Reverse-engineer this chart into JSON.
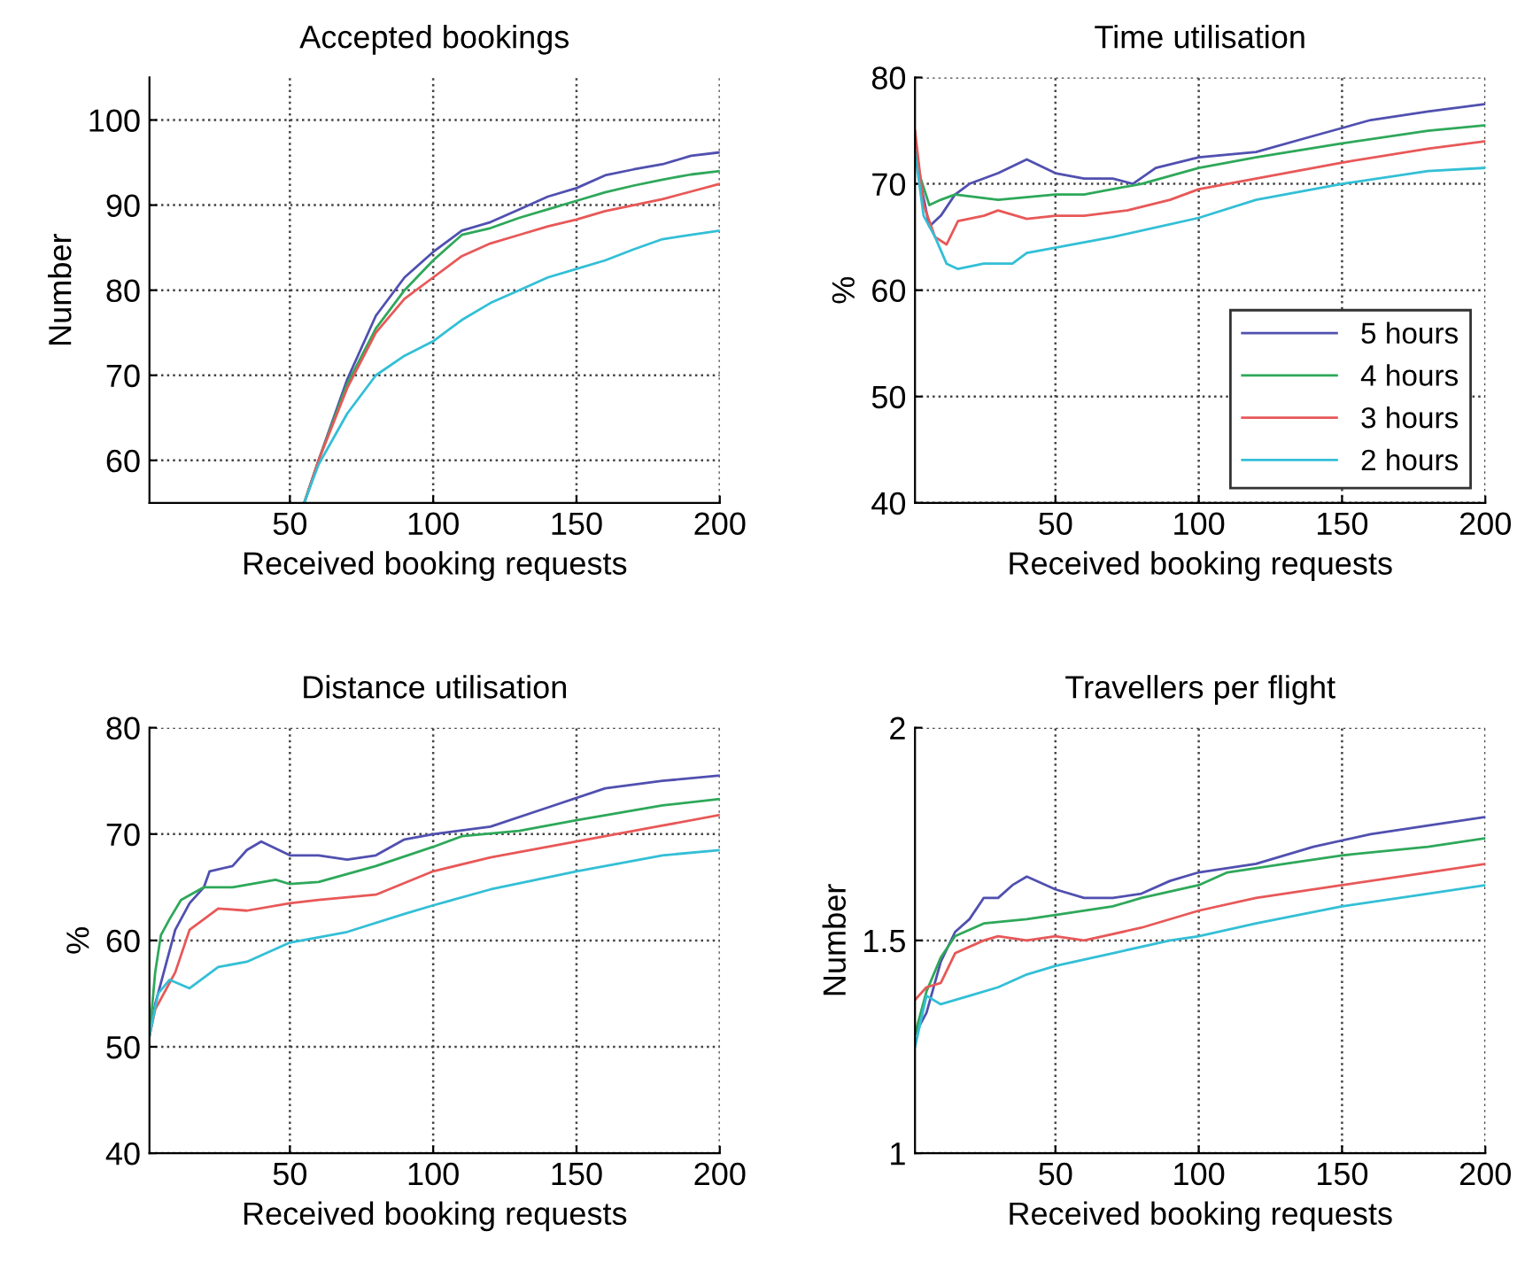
{
  "chart_data": [
    {
      "type": "line",
      "title": "Accepted bookings",
      "xlabel": "Received booking requests",
      "ylabel": "Number",
      "xlim": [
        1,
        200
      ],
      "xticks": [
        50,
        100,
        150,
        200
      ],
      "ylim": [
        55,
        105
      ],
      "yticks": [
        60,
        70,
        80,
        90,
        100
      ],
      "grid": true,
      "line_style": "solid",
      "series": [
        {
          "color": "#5050b0",
          "x": [
            55,
            60,
            70,
            80,
            90,
            100,
            110,
            120,
            130,
            140,
            150,
            160,
            170,
            180,
            190,
            200
          ],
          "values": [
            55,
            60,
            69.5,
            77,
            81.5,
            84.5,
            87,
            88,
            89.5,
            91,
            92,
            93.5,
            94.2,
            94.8,
            95.8,
            96.2
          ]
        },
        {
          "color": "#2ea85a",
          "x": [
            55,
            60,
            70,
            80,
            90,
            100,
            110,
            120,
            130,
            140,
            150,
            160,
            170,
            180,
            190,
            200
          ],
          "values": [
            55,
            60,
            69,
            75.5,
            80,
            83.5,
            86.5,
            87.3,
            88.5,
            89.5,
            90.5,
            91.5,
            92.3,
            93,
            93.6,
            94
          ]
        },
        {
          "color": "#e85858",
          "x": [
            55,
            60,
            70,
            80,
            90,
            100,
            110,
            120,
            130,
            140,
            150,
            160,
            170,
            180,
            190,
            200
          ],
          "values": [
            55,
            60,
            68.5,
            75,
            79,
            81.5,
            84,
            85.5,
            86.5,
            87.5,
            88.3,
            89.3,
            90,
            90.7,
            91.6,
            92.5
          ]
        },
        {
          "color": "#33bfd6",
          "x": [
            55,
            60,
            70,
            80,
            90,
            100,
            110,
            120,
            130,
            140,
            150,
            160,
            170,
            180,
            190,
            200
          ],
          "values": [
            55,
            59.5,
            65.5,
            70,
            72.3,
            74,
            76.5,
            78.5,
            80,
            81.5,
            82.5,
            83.5,
            84.8,
            86,
            86.5,
            87
          ]
        }
      ]
    },
    {
      "type": "line",
      "title": "Time utilisation",
      "xlabel": "Received booking requests",
      "ylabel": "%",
      "xlim": [
        1,
        200
      ],
      "xticks": [
        50,
        100,
        150,
        200
      ],
      "ylim": [
        40,
        80
      ],
      "yticks": [
        40,
        50,
        60,
        70,
        80
      ],
      "grid": true,
      "line_style": "solid",
      "legend": "bottom right",
      "series": [
        {
          "name": "5 hours",
          "color": "#5050b0",
          "x": [
            1,
            3,
            6,
            10,
            15,
            20,
            25,
            30,
            40,
            50,
            60,
            70,
            77,
            85,
            100,
            120,
            140,
            160,
            180,
            200
          ],
          "values": [
            73,
            70,
            66,
            67,
            69,
            70,
            70.5,
            71,
            72.3,
            71,
            70.5,
            70.5,
            70,
            71.5,
            72.5,
            73,
            74.5,
            76,
            76.8,
            77.5
          ]
        },
        {
          "name": "4 hours",
          "color": "#2ea85a",
          "x": [
            1,
            3,
            6,
            10,
            15,
            30,
            50,
            60,
            80,
            100,
            120,
            150,
            180,
            200
          ],
          "values": [
            73,
            70.5,
            68,
            68.5,
            69,
            68.5,
            69,
            69,
            70,
            71.5,
            72.5,
            73.8,
            75,
            75.5
          ]
        },
        {
          "name": "3 hours",
          "color": "#e85858",
          "x": [
            1,
            4,
            8,
            12,
            16,
            25,
            30,
            40,
            50,
            60,
            75,
            90,
            100,
            120,
            150,
            180,
            200
          ],
          "values": [
            75,
            68,
            65,
            64.3,
            66.5,
            67,
            67.5,
            66.7,
            67,
            67,
            67.5,
            68.5,
            69.5,
            70.5,
            72,
            73.3,
            74
          ]
        },
        {
          "name": "2 hours",
          "color": "#33bfd6",
          "x": [
            1,
            4,
            8,
            12,
            16,
            25,
            35,
            40,
            50,
            70,
            100,
            120,
            150,
            180,
            200
          ],
          "values": [
            73,
            67,
            65,
            62.5,
            62,
            62.5,
            62.5,
            63.5,
            64,
            65,
            66.8,
            68.5,
            70,
            71.2,
            71.5
          ]
        }
      ]
    },
    {
      "type": "line",
      "title": "Distance utilisation",
      "xlabel": "Received booking requests",
      "ylabel": "%",
      "xlim": [
        1,
        200
      ],
      "xticks": [
        50,
        100,
        150,
        200
      ],
      "ylim": [
        40,
        80
      ],
      "yticks": [
        40,
        50,
        60,
        70,
        80
      ],
      "grid": true,
      "line_style": "solid",
      "series": [
        {
          "color": "#5050b0",
          "x": [
            1,
            3,
            6,
            10,
            15,
            20,
            22,
            30,
            35,
            40,
            50,
            60,
            70,
            80,
            90,
            100,
            120,
            140,
            160,
            180,
            200
          ],
          "values": [
            51,
            54,
            57,
            61,
            63.5,
            65,
            66.5,
            67,
            68.5,
            69.3,
            68,
            68,
            67.6,
            68,
            69.5,
            70,
            70.7,
            72.5,
            74.3,
            75,
            75.5
          ]
        },
        {
          "color": "#2ea85a",
          "x": [
            1,
            3,
            5,
            8,
            12,
            20,
            30,
            45,
            50,
            60,
            80,
            100,
            110,
            130,
            150,
            180,
            200
          ],
          "values": [
            51,
            57,
            60.5,
            62,
            63.8,
            65,
            65,
            65.7,
            65.3,
            65.5,
            67,
            68.8,
            69.8,
            70.3,
            71.3,
            72.7,
            73.3
          ]
        },
        {
          "color": "#e85858",
          "x": [
            1,
            3,
            6,
            10,
            15,
            25,
            35,
            50,
            60,
            80,
            100,
            120,
            150,
            180,
            200
          ],
          "values": [
            51,
            53.5,
            55,
            57,
            61,
            63,
            62.8,
            63.5,
            63.8,
            64.3,
            66.5,
            67.8,
            69.3,
            70.8,
            71.8
          ]
        },
        {
          "color": "#33bfd6",
          "x": [
            1,
            4,
            8,
            15,
            25,
            35,
            50,
            70,
            90,
            100,
            120,
            150,
            180,
            200
          ],
          "values": [
            51,
            55,
            56.3,
            55.5,
            57.5,
            58,
            59.8,
            60.8,
            62.5,
            63.3,
            64.8,
            66.5,
            68,
            68.5
          ]
        }
      ]
    },
    {
      "type": "line",
      "title": "Travellers per flight",
      "xlabel": "Received booking requests",
      "ylabel": "Number",
      "xlim": [
        1,
        200
      ],
      "xticks": [
        50,
        100,
        150,
        200
      ],
      "ylim": [
        1,
        2
      ],
      "yticks": [
        1,
        1.5,
        2
      ],
      "grid": true,
      "line_style": "solid",
      "series": [
        {
          "color": "#5050b0",
          "x": [
            1,
            5,
            10,
            15,
            20,
            25,
            30,
            35,
            40,
            50,
            60,
            70,
            80,
            90,
            100,
            120,
            140,
            160,
            180,
            200
          ],
          "values": [
            1.28,
            1.33,
            1.45,
            1.52,
            1.55,
            1.6,
            1.6,
            1.63,
            1.65,
            1.62,
            1.6,
            1.6,
            1.61,
            1.64,
            1.66,
            1.68,
            1.72,
            1.75,
            1.77,
            1.79
          ]
        },
        {
          "color": "#2ea85a",
          "x": [
            1,
            5,
            10,
            15,
            25,
            40,
            50,
            70,
            80,
            100,
            110,
            130,
            150,
            180,
            200
          ],
          "values": [
            1.28,
            1.38,
            1.46,
            1.51,
            1.54,
            1.55,
            1.56,
            1.58,
            1.6,
            1.63,
            1.66,
            1.68,
            1.7,
            1.72,
            1.74
          ]
        },
        {
          "color": "#e85858",
          "x": [
            1,
            5,
            10,
            15,
            25,
            30,
            40,
            50,
            60,
            80,
            100,
            120,
            150,
            180,
            200
          ],
          "values": [
            1.36,
            1.39,
            1.4,
            1.47,
            1.5,
            1.51,
            1.5,
            1.51,
            1.5,
            1.53,
            1.57,
            1.6,
            1.63,
            1.66,
            1.68
          ]
        },
        {
          "color": "#33bfd6",
          "x": [
            1,
            5,
            10,
            20,
            30,
            40,
            50,
            70,
            90,
            100,
            120,
            150,
            180,
            200
          ],
          "values": [
            1.25,
            1.37,
            1.35,
            1.37,
            1.39,
            1.42,
            1.44,
            1.47,
            1.5,
            1.51,
            1.54,
            1.58,
            1.61,
            1.63
          ]
        }
      ]
    }
  ]
}
